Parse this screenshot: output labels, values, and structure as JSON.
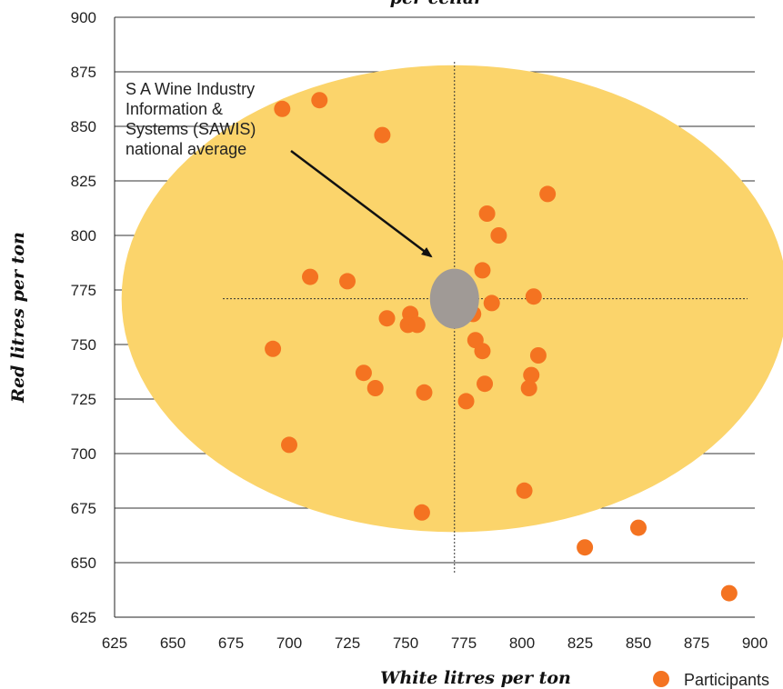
{
  "chart_data": {
    "type": "scatter",
    "title": "per cellar",
    "xlabel": "White litres per ton",
    "ylabel": "Red litres per ton",
    "xlim": [
      625,
      900
    ],
    "ylim": [
      625,
      900
    ],
    "x_ticks": [
      "625",
      "650",
      "675",
      "700",
      "725",
      "750",
      "775",
      "800",
      "825",
      "850",
      "875",
      "900"
    ],
    "y_ticks": [
      "625",
      "650",
      "675",
      "700",
      "725",
      "750",
      "775",
      "800",
      "825",
      "850",
      "875",
      "900"
    ],
    "grid": "horizontal",
    "colors": {
      "points": "#f47321",
      "ellipse": "#fbd46b",
      "average": "#a09a96",
      "grid": "#333333"
    },
    "series": [
      {
        "name": "Participants",
        "points": [
          [
            697,
            858
          ],
          [
            713,
            862
          ],
          [
            740,
            846
          ],
          [
            811,
            819
          ],
          [
            785,
            810
          ],
          [
            790,
            800
          ],
          [
            709,
            781
          ],
          [
            725,
            779
          ],
          [
            783,
            784
          ],
          [
            805,
            772
          ],
          [
            787,
            769
          ],
          [
            742,
            762
          ],
          [
            752,
            764
          ],
          [
            751,
            759
          ],
          [
            755,
            759
          ],
          [
            779,
            764
          ],
          [
            780,
            752
          ],
          [
            783,
            747
          ],
          [
            693,
            748
          ],
          [
            807,
            745
          ],
          [
            732,
            737
          ],
          [
            804,
            736
          ],
          [
            737,
            730
          ],
          [
            758,
            728
          ],
          [
            784,
            732
          ],
          [
            803,
            730
          ],
          [
            776,
            724
          ],
          [
            700,
            704
          ],
          [
            801,
            683
          ],
          [
            757,
            673
          ],
          [
            850,
            666
          ],
          [
            827,
            657
          ],
          [
            889,
            636
          ]
        ]
      }
    ],
    "highlight_region": {
      "center": [
        771,
        771
      ],
      "x_radius": 143,
      "y_radius": 107
    },
    "national_average": {
      "x": 771,
      "y": 771
    },
    "reference_lines": {
      "x": 771,
      "y": 771
    },
    "annotation": {
      "lines": [
        "S A Wine Industry",
        "Information &",
        "Systems (SAWIS)",
        "national average"
      ]
    },
    "legend": {
      "position": "bottom-right",
      "label": "Participants"
    }
  }
}
